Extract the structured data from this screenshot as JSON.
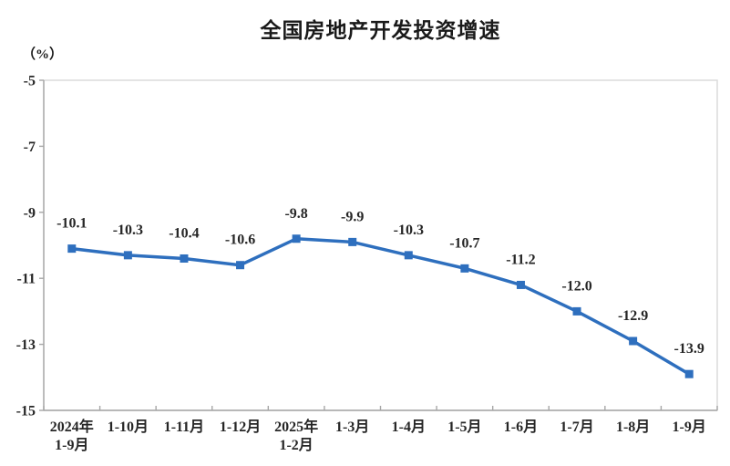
{
  "chart_data": {
    "type": "line",
    "title": "全国房地产开发投资增速",
    "ylabel": "（%）",
    "xlabel": "",
    "categories": [
      "2024年\n1-9月",
      "1-10月",
      "1-11月",
      "1-12月",
      "2025年\n1-2月",
      "1-3月",
      "1-4月",
      "1-5月",
      "1-6月",
      "1-7月",
      "1-8月",
      "1-9月"
    ],
    "values": [
      -10.1,
      -10.3,
      -10.4,
      -10.6,
      -9.8,
      -9.9,
      -10.3,
      -10.7,
      -11.2,
      -12.0,
      -12.9,
      -13.9
    ],
    "data_labels": [
      "-10.1",
      "-10.3",
      "-10.4",
      "-10.6",
      "-9.8",
      "-9.9",
      "-10.3",
      "-10.7",
      "-11.2",
      "-12.0",
      "-12.9",
      "-13.9"
    ],
    "ylim": [
      -15,
      -5
    ],
    "yticks": [
      -5,
      -7,
      -9,
      -11,
      -13,
      -15
    ],
    "grid": false,
    "legend": "none",
    "marker": "square",
    "colors": {
      "line": "#2e6fbe",
      "marker": "#2e6fbe",
      "label_text": "#262626",
      "axis_line": "#a6a6a6",
      "plot_border": "#d9d9d9",
      "title_text": "#1a1a1a"
    }
  }
}
